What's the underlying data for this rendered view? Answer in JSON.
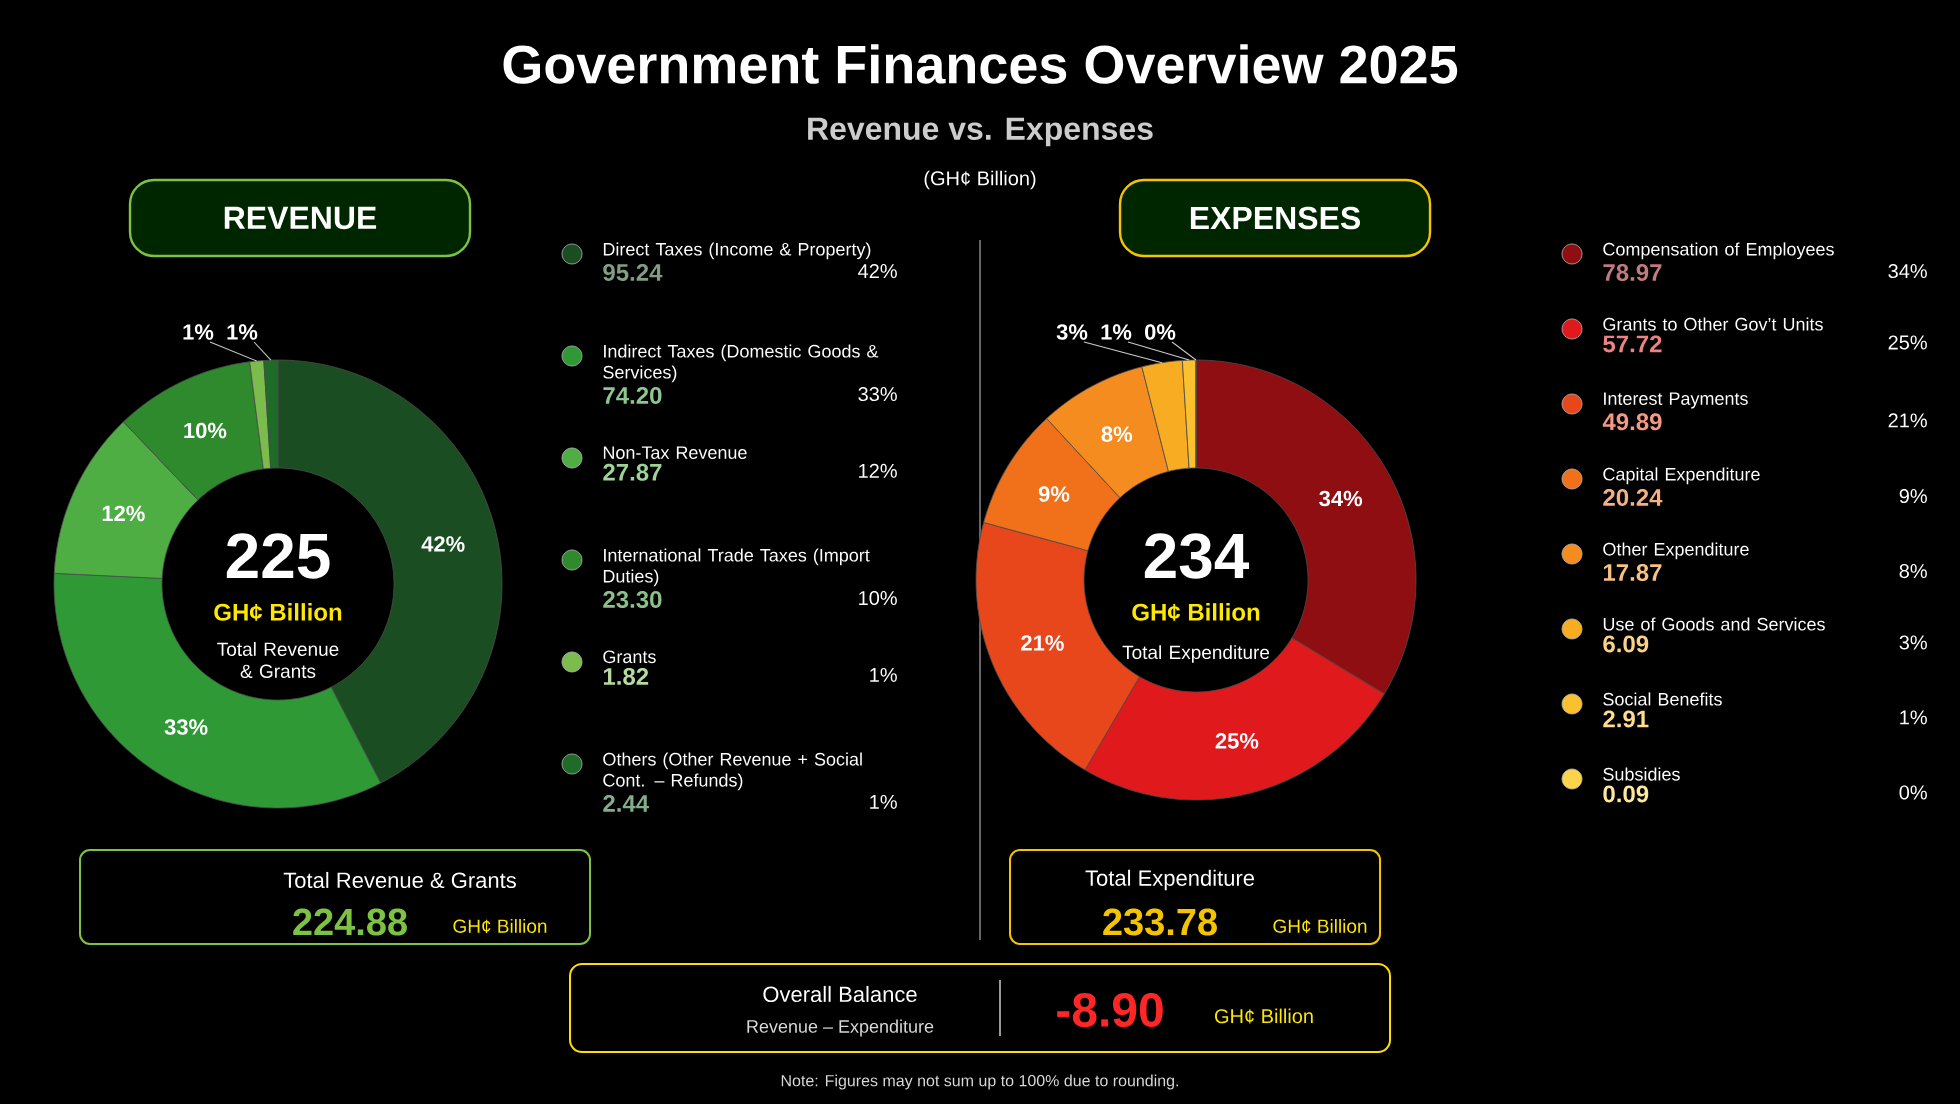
{
  "chart_data": [
    {
      "type": "other",
      "title": "Government Finances Overview 2025",
      "subtitle": "Revenue vs. Expenses",
      "annotations": [
        "(GH¢ Billion)",
        "Overall Balance",
        "Revenue – Expenditure",
        "-8.90",
        "GH¢ Billion",
        "Note: Figures may not sum up to 100% due to rounding."
      ]
    },
    {
      "type": "donut",
      "title": "REVENUE",
      "categories": [
        "Direct Taxes (Income & Property)",
        "Indirect Taxes (Domestic Goods & Services)",
        "Non-Tax Revenue",
        "International Trade Taxes (Import Duties)",
        "Grants",
        "Others (Other Revenue + Social Cont. – Refunds)"
      ],
      "values": [
        42,
        33,
        12,
        10,
        1,
        1
      ],
      "colors": [
        "#1b4d22",
        "#2f9a35",
        "#4fae43",
        "#2e8a2c",
        "#7cbc4c",
        "#1f6b28"
      ],
      "value_labels": [
        "42%",
        "33%",
        "12%",
        "10%",
        "1%",
        "1%"
      ],
      "legend": "right",
      "annotations": [
        "225",
        "GH¢ Billion",
        "Total Revenue & Grants",
        "Total Revenue & Grants",
        "224.88",
        "GH¢ Billion",
        "95.24",
        "74.20",
        "27.87",
        "23.30",
        "1.82",
        "2.44"
      ]
    },
    {
      "type": "donut",
      "title": "EXPENSES",
      "categories": [
        "Compensation of Employees",
        "Grants to Other Gov’t Units",
        "Interest Payments",
        "Capital Expenditure",
        "Other Expenditure",
        "Use of Goods and Services",
        "Social Benefits",
        "Subsidies"
      ],
      "values": [
        34,
        25,
        21,
        9,
        8,
        3,
        1,
        0
      ],
      "colors": [
        "#8e0e12",
        "#e0191c",
        "#e8471b",
        "#f0711a",
        "#f58c20",
        "#f8ac22",
        "#fbc02d",
        "#fcd34a"
      ],
      "value_labels": [
        "34%",
        "25%",
        "21%",
        "9%",
        "8%",
        "3%",
        "1%",
        "0%"
      ],
      "legend": "right",
      "annotations": [
        "234",
        "GH¢ Billion",
        "Total Expenditure",
        "Total Expenditure",
        "233.78",
        "GH¢ Billion",
        "78.97",
        "57.72",
        "49.89",
        "20.24",
        "17.87",
        "6.09",
        "2.91",
        "0.09"
      ]
    }
  ]
}
